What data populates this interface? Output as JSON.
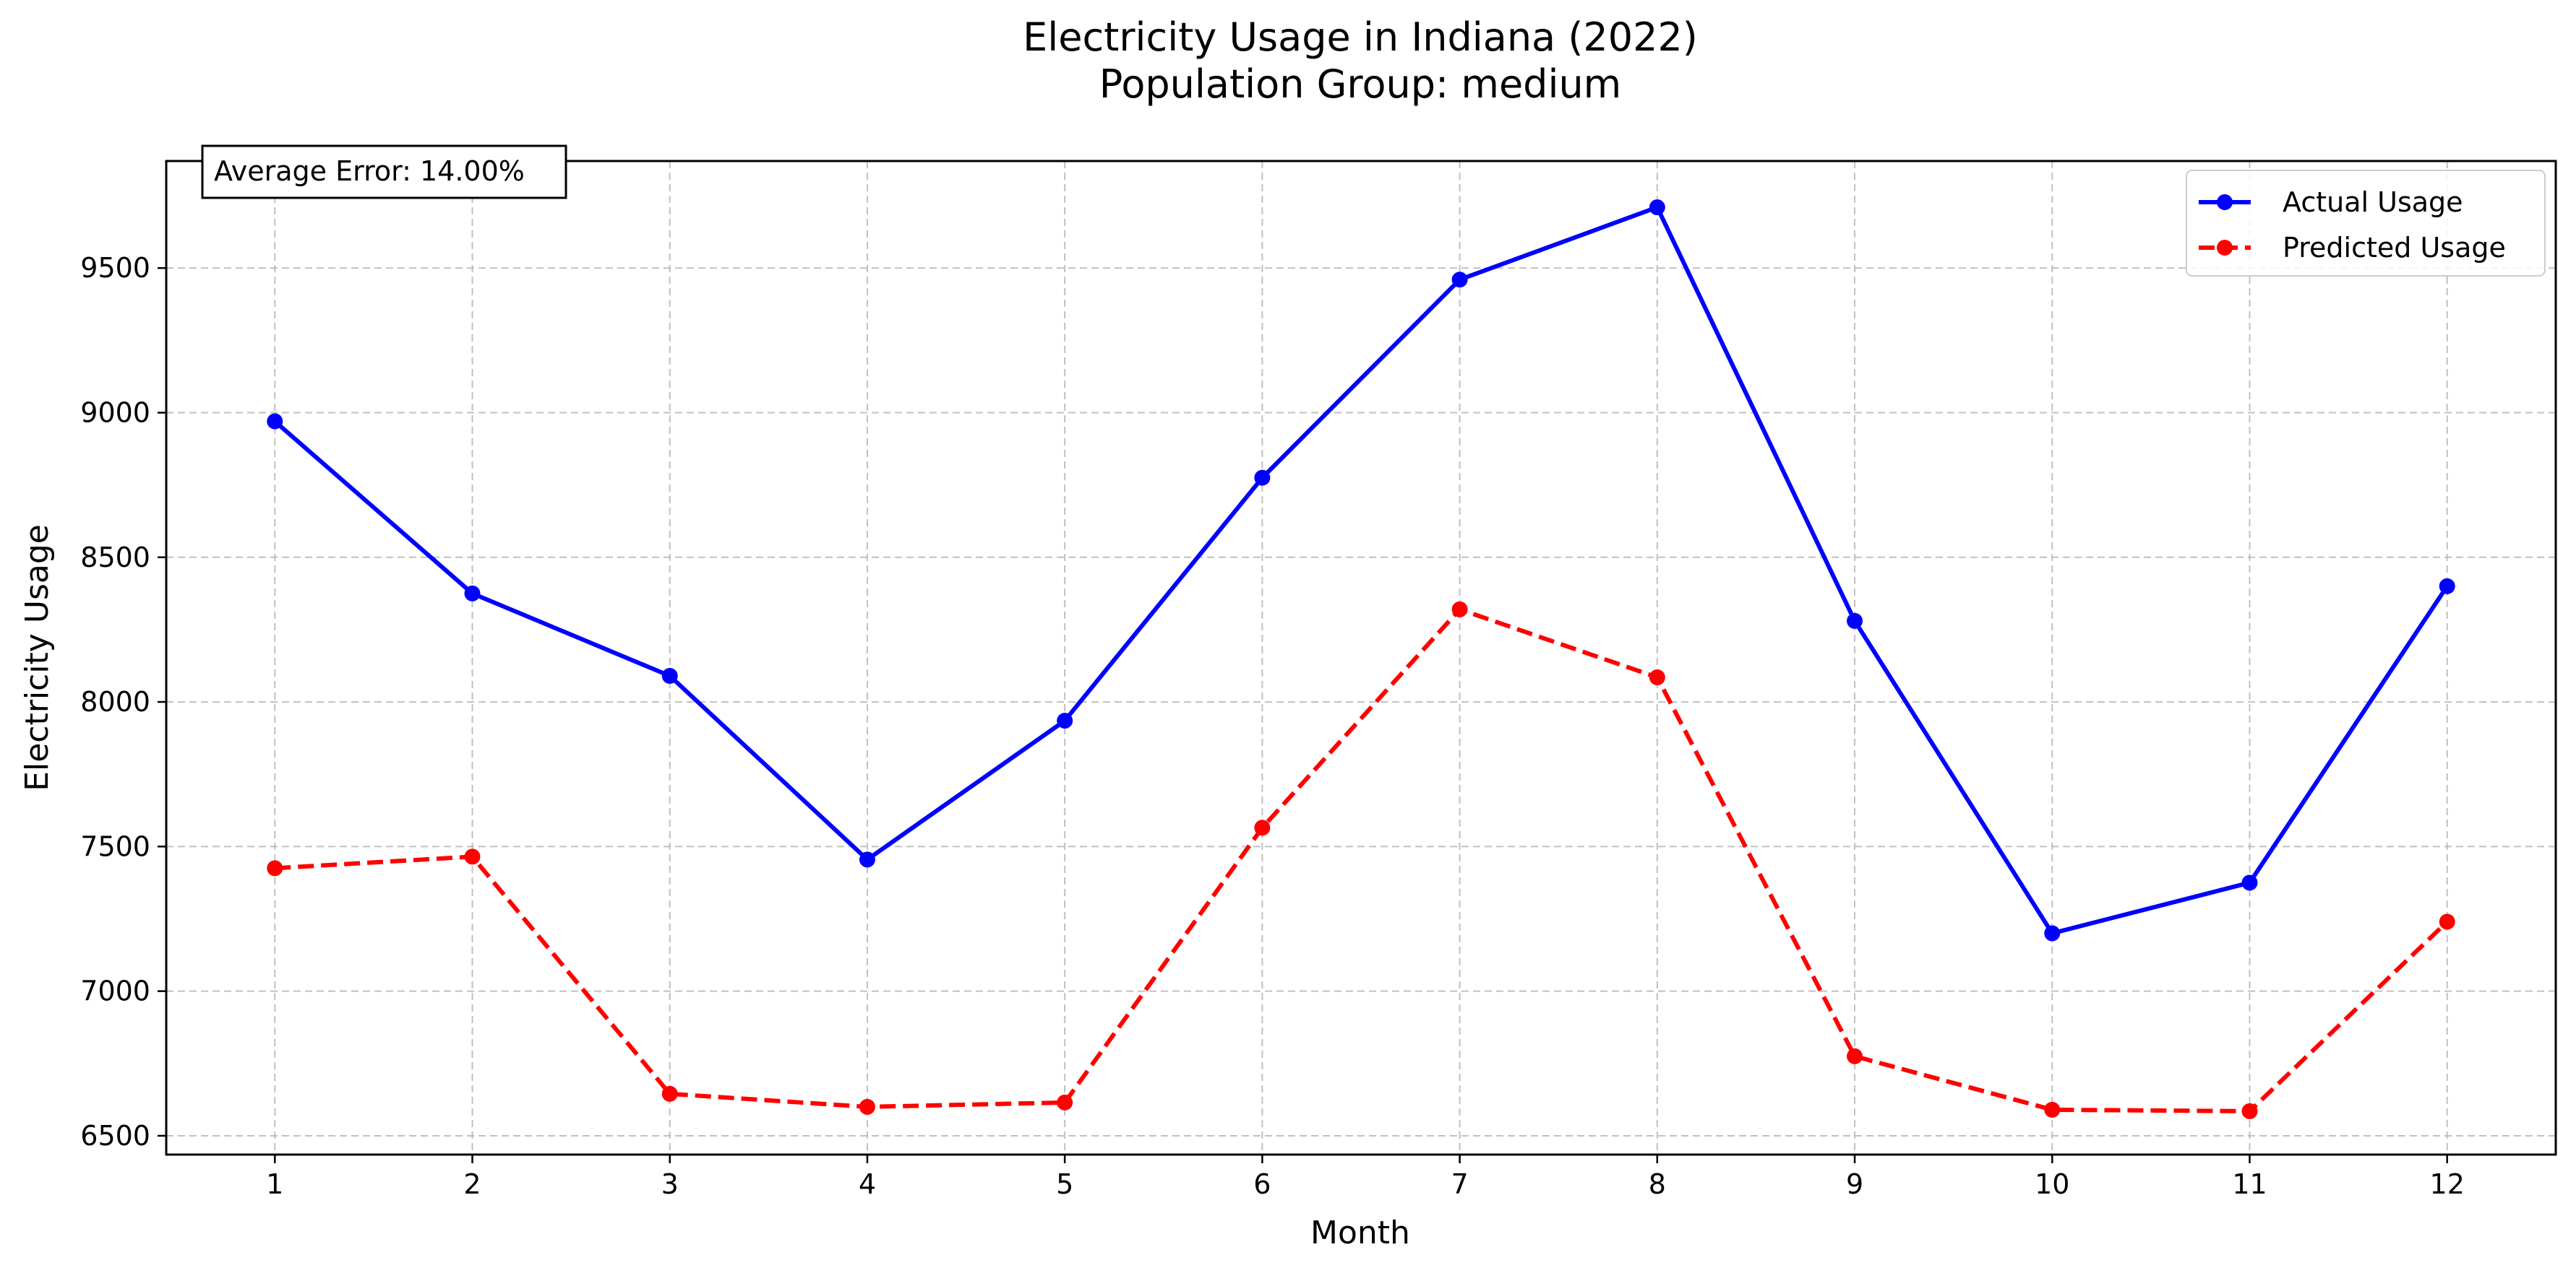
{
  "chart_data": {
    "type": "line",
    "title": "Electricity Usage in Indiana (2022)",
    "subtitle": "Population Group: medium",
    "xlabel": "Month",
    "ylabel": "Electricity Usage",
    "x": [
      1,
      2,
      3,
      4,
      5,
      6,
      7,
      8,
      9,
      10,
      11,
      12
    ],
    "xticks": [
      "1",
      "2",
      "3",
      "4",
      "5",
      "6",
      "7",
      "8",
      "9",
      "10",
      "11",
      "12"
    ],
    "yticks": [
      6500,
      7000,
      7500,
      8000,
      8500,
      9000,
      9500
    ],
    "xlim": [
      0.45,
      12.55
    ],
    "ylim": [
      6435,
      9870
    ],
    "grid": true,
    "legend_position": "top-right",
    "annotation": "Average Error: 14.00%",
    "series": [
      {
        "name": "Actual Usage",
        "color": "#0000ff",
        "style": "solid",
        "marker": "circle",
        "values": [
          8970,
          8375,
          8090,
          7455,
          7935,
          8775,
          9460,
          9710,
          8280,
          7200,
          7375,
          8400
        ]
      },
      {
        "name": "Predicted Usage",
        "color": "#ff0000",
        "style": "dashed",
        "marker": "circle",
        "values": [
          7425,
          7465,
          6645,
          6600,
          6615,
          7565,
          8320,
          8085,
          6775,
          6590,
          6585,
          7240
        ]
      }
    ]
  }
}
